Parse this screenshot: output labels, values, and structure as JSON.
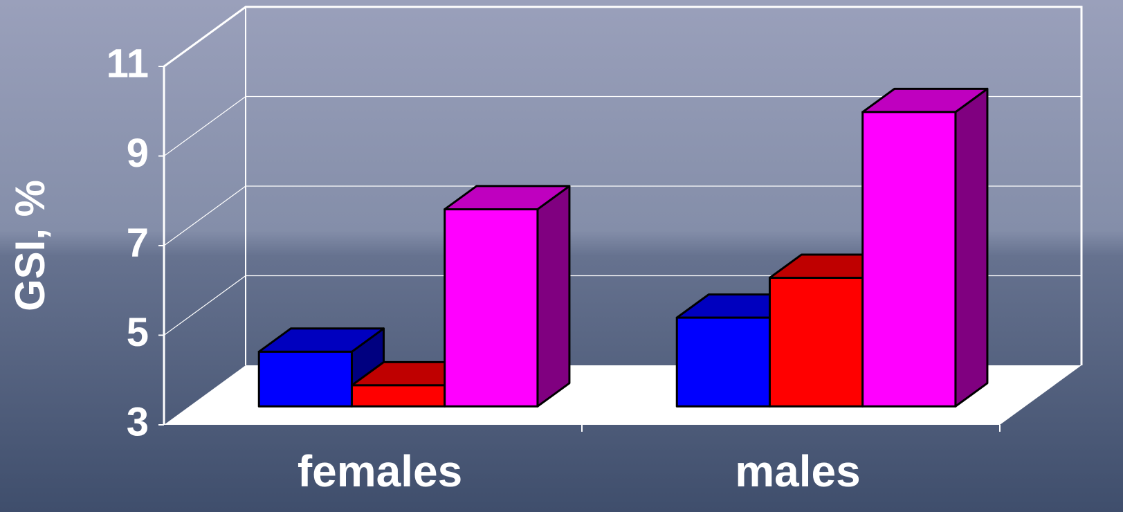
{
  "chart_data": {
    "type": "bar3d",
    "y_label": "GSI, %",
    "categories": [
      "females",
      "males"
    ],
    "series": [
      {
        "color": "#0000ff",
        "values": [
          4.22,
          4.98
        ]
      },
      {
        "color": "#ff0000",
        "values": [
          3.47,
          5.87
        ]
      },
      {
        "color": "#ff00ff",
        "values": [
          7.4,
          9.57
        ]
      }
    ],
    "ylim": [
      3,
      11
    ],
    "yticks": [
      3,
      5,
      7,
      9,
      11
    ],
    "grid": true
  }
}
